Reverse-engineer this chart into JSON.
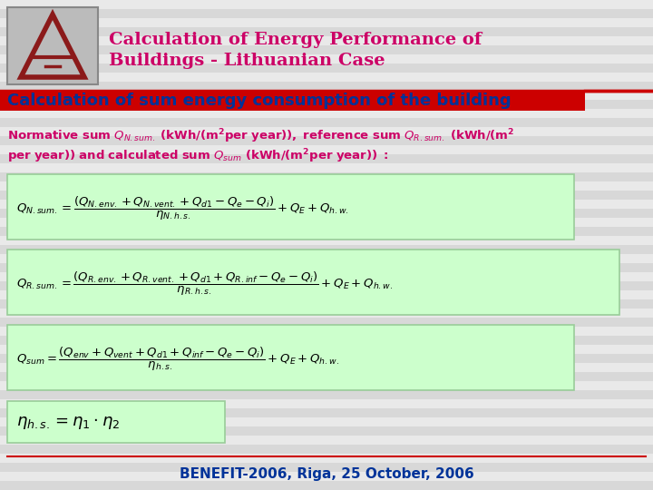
{
  "title_line1": "Calculation of Energy Performance of",
  "title_line2": "Buildings - Lithuanian Case",
  "title_color": "#CC0066",
  "subtitle": "Calculation of sum energy consumption of the building",
  "subtitle_color": "#003399",
  "subtitle_bar_color": "#CC0000",
  "bg_color": "#D8D8D8",
  "stripe_color": "#FFFFFF",
  "formula_bg": "#CCFFCC",
  "formula_border": "#99CC99",
  "footer_text": "BENEFIT-2006, Riga, 25 October, 2006",
  "footer_color": "#003399",
  "footer_line_color": "#CC0000",
  "header_line_color": "#CC0000",
  "intro_text_color": "#CC0066",
  "intro_bold_color": "#333333"
}
